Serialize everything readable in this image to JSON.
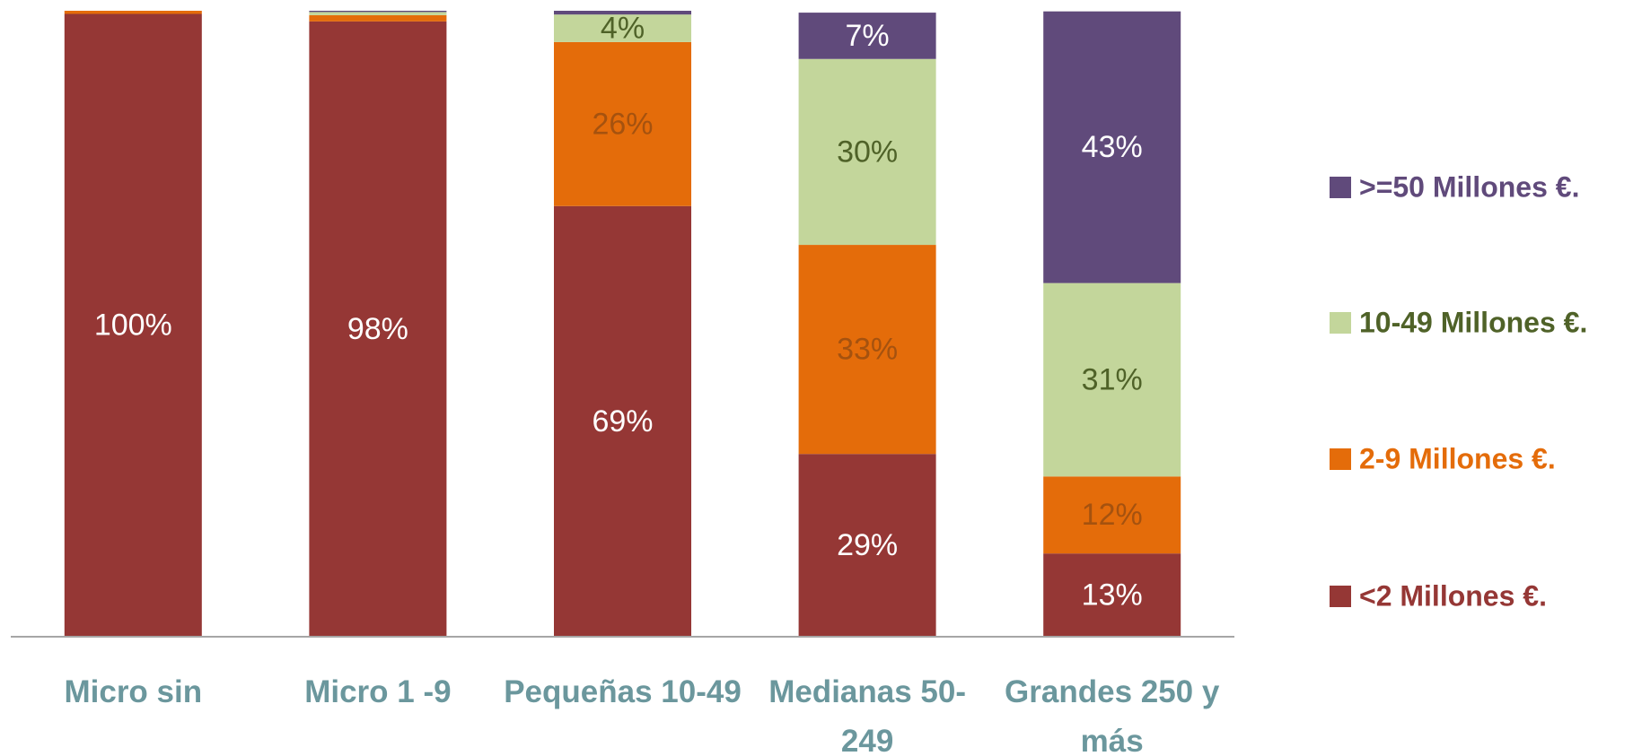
{
  "chart_data": {
    "type": "stacked_bar",
    "categories": [
      "Micro sin",
      "Micro 1 -9",
      "Pequeñas 10-49",
      "Medianas 50-249",
      "Grandes 250 y más"
    ],
    "series": [
      {
        "name": "<2 Millones €.",
        "color": "#953735",
        "label_color": "#ffffff",
        "legend_color": "#953735",
        "values": [
          99.5,
          98.3,
          68.8,
          29.2,
          13.3
        ],
        "value_labels": [
          "100%",
          "98%",
          "69%",
          "29%",
          "13%"
        ]
      },
      {
        "name": "2-9 Millones €.",
        "color": "#e46c0a",
        "label_color": "#a5520f",
        "legend_color": "#e46c0a",
        "values": [
          0.5,
          1.0,
          26.2,
          33.4,
          12.3
        ],
        "value_labels": [
          null,
          null,
          "26%",
          "33%",
          "12%"
        ]
      },
      {
        "name": "10-49 Millones €.",
        "color": "#c3d69b",
        "label_color": "#4f6228",
        "legend_color": "#4f6228",
        "values": [
          0,
          0.5,
          4.4,
          29.7,
          30.9
        ],
        "value_labels": [
          null,
          null,
          "4%",
          "30%",
          "31%"
        ]
      },
      {
        "name": ">=50 Millones €.",
        "color": "#604a7b",
        "label_color": "#ffffff",
        "legend_color": "#604a7b",
        "values": [
          0,
          0.2,
          0.6,
          7.4,
          43.4
        ],
        "value_labels": [
          null,
          null,
          null,
          "7%",
          "43%"
        ]
      }
    ],
    "ylim": [
      0,
      100
    ],
    "legend": "right"
  }
}
